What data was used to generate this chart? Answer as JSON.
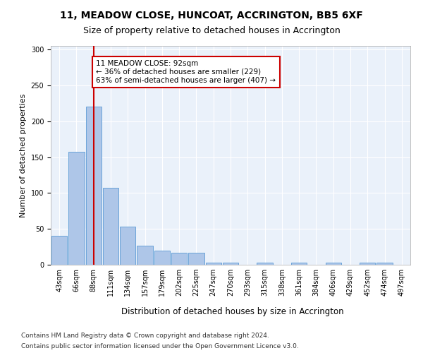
{
  "title": "11, MEADOW CLOSE, HUNCOAT, ACCRINGTON, BB5 6XF",
  "subtitle": "Size of property relative to detached houses in Accrington",
  "xlabel": "Distribution of detached houses by size in Accrington",
  "ylabel": "Number of detached properties",
  "bin_labels": [
    "43sqm",
    "66sqm",
    "88sqm",
    "111sqm",
    "134sqm",
    "157sqm",
    "179sqm",
    "202sqm",
    "225sqm",
    "247sqm",
    "270sqm",
    "293sqm",
    "315sqm",
    "338sqm",
    "361sqm",
    "384sqm",
    "406sqm",
    "429sqm",
    "452sqm",
    "474sqm",
    "497sqm"
  ],
  "bar_heights": [
    40,
    157,
    220,
    107,
    53,
    27,
    20,
    17,
    17,
    3,
    3,
    0,
    3,
    0,
    3,
    0,
    3,
    0,
    3,
    3,
    0
  ],
  "bar_color": "#AEC6E8",
  "bar_edge_color": "#5B9BD5",
  "vline_x_index": 2,
  "vline_color": "#CC0000",
  "annotation_text": "11 MEADOW CLOSE: 92sqm\n← 36% of detached houses are smaller (229)\n63% of semi-detached houses are larger (407) →",
  "annotation_box_color": "#CC0000",
  "ylim": [
    0,
    305
  ],
  "yticks": [
    0,
    50,
    100,
    150,
    200,
    250,
    300
  ],
  "footer_line1": "Contains HM Land Registry data © Crown copyright and database right 2024.",
  "footer_line2": "Contains public sector information licensed under the Open Government Licence v3.0.",
  "bg_color": "#FFFFFF",
  "plot_bg_color": "#EAF1FA",
  "grid_color": "#FFFFFF",
  "title_fontsize": 10,
  "subtitle_fontsize": 9,
  "axis_label_fontsize": 8,
  "tick_fontsize": 7,
  "footer_fontsize": 6.5,
  "annotation_fontsize": 7.5
}
